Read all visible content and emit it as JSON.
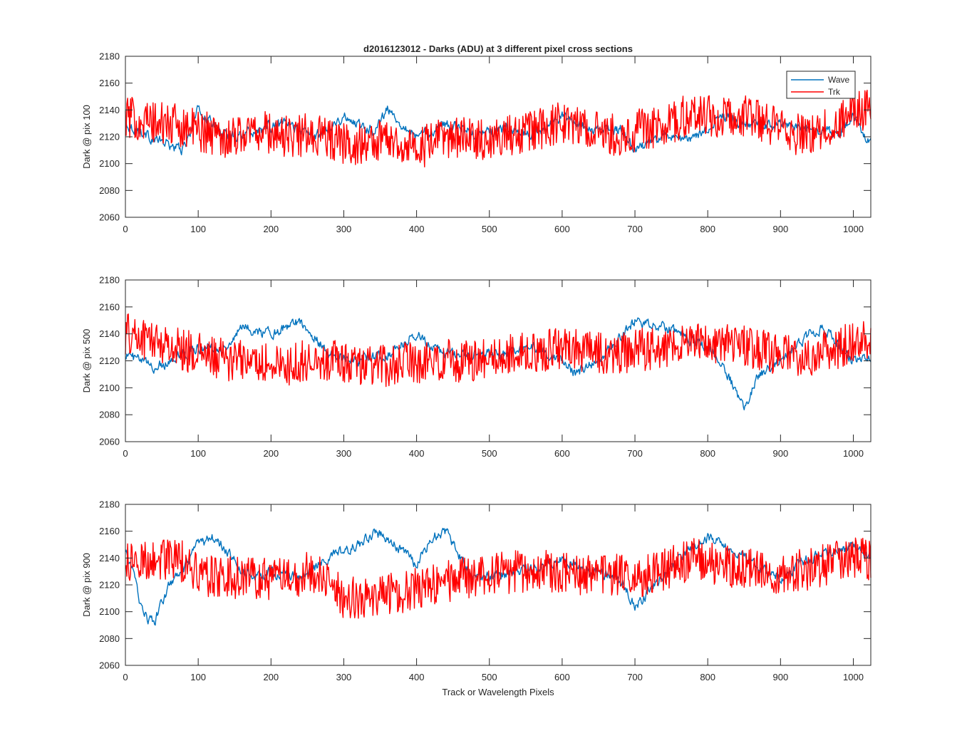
{
  "figure_title": "d2016123012 - Darks (ADU) at 3 different pixel cross sections",
  "legend": {
    "placement": "top-right of first panel",
    "entries": [
      {
        "label": "Wave",
        "color": "#0072bd"
      },
      {
        "label": "Trk",
        "color": "#ff0000"
      }
    ]
  },
  "chart_data": [
    {
      "type": "line",
      "title": "d2016123012 - Darks (ADU) at 3 different pixel cross sections",
      "ylabel": "Dark @ pix 100",
      "xlabel": "",
      "xlim": [
        0,
        1024
      ],
      "ylim": [
        2060,
        2180
      ],
      "xticks": [
        0,
        100,
        200,
        300,
        400,
        500,
        600,
        700,
        800,
        900,
        1000
      ],
      "yticks": [
        2060,
        2080,
        2100,
        2120,
        2140,
        2160,
        2180
      ],
      "grid": false,
      "series": [
        {
          "name": "Wave",
          "color": "#0072bd",
          "x": [
            0,
            40,
            80,
            100,
            140,
            180,
            220,
            260,
            300,
            340,
            360,
            400,
            440,
            480,
            520,
            560,
            600,
            640,
            680,
            700,
            740,
            780,
            820,
            860,
            900,
            940,
            980,
            1000,
            1024
          ],
          "y": [
            2130,
            2118,
            2110,
            2140,
            2120,
            2125,
            2130,
            2120,
            2135,
            2125,
            2140,
            2120,
            2130,
            2122,
            2125,
            2122,
            2135,
            2125,
            2125,
            2110,
            2120,
            2118,
            2135,
            2128,
            2130,
            2125,
            2122,
            2135,
            2115
          ]
        },
        {
          "name": "Trk",
          "color": "#ff0000",
          "x": [
            0,
            40,
            80,
            100,
            140,
            180,
            220,
            260,
            300,
            340,
            360,
            400,
            440,
            480,
            520,
            560,
            600,
            640,
            680,
            700,
            740,
            780,
            820,
            860,
            900,
            940,
            980,
            1000,
            1024
          ],
          "y": [
            2135,
            2130,
            2128,
            2125,
            2120,
            2125,
            2120,
            2122,
            2115,
            2115,
            2120,
            2110,
            2120,
            2118,
            2120,
            2125,
            2130,
            2125,
            2120,
            2125,
            2128,
            2138,
            2135,
            2135,
            2125,
            2120,
            2130,
            2140,
            2140
          ]
        }
      ]
    },
    {
      "type": "line",
      "ylabel": "Dark @ pix 500",
      "xlabel": "",
      "xlim": [
        0,
        1024
      ],
      "ylim": [
        2060,
        2180
      ],
      "xticks": [
        0,
        100,
        200,
        300,
        400,
        500,
        600,
        700,
        800,
        900,
        1000
      ],
      "yticks": [
        2060,
        2080,
        2100,
        2120,
        2140,
        2160,
        2180
      ],
      "grid": false,
      "series": [
        {
          "name": "Wave",
          "color": "#0072bd",
          "x": [
            0,
            40,
            80,
            100,
            140,
            160,
            200,
            240,
            280,
            320,
            360,
            400,
            440,
            480,
            520,
            560,
            600,
            620,
            660,
            700,
            740,
            780,
            800,
            820,
            840,
            850,
            870,
            900,
            940,
            960,
            1000,
            1024
          ],
          "y": [
            2125,
            2115,
            2125,
            2130,
            2130,
            2145,
            2140,
            2150,
            2125,
            2120,
            2125,
            2140,
            2125,
            2125,
            2125,
            2130,
            2120,
            2110,
            2125,
            2150,
            2145,
            2135,
            2130,
            2120,
            2095,
            2085,
            2110,
            2120,
            2140,
            2145,
            2120,
            2120
          ]
        },
        {
          "name": "Trk",
          "color": "#ff0000",
          "x": [
            0,
            40,
            80,
            100,
            140,
            180,
            220,
            260,
            300,
            340,
            380,
            420,
            460,
            500,
            540,
            580,
            620,
            660,
            700,
            740,
            780,
            820,
            860,
            900,
            940,
            980,
            1000,
            1024
          ],
          "y": [
            2140,
            2135,
            2128,
            2125,
            2120,
            2120,
            2115,
            2122,
            2120,
            2115,
            2118,
            2120,
            2120,
            2122,
            2125,
            2128,
            2128,
            2125,
            2128,
            2130,
            2132,
            2135,
            2130,
            2125,
            2125,
            2130,
            2135,
            2138
          ]
        }
      ]
    },
    {
      "type": "line",
      "ylabel": "Dark @ pix 900",
      "xlabel": "Track or Wavelength Pixels",
      "xlim": [
        0,
        1024
      ],
      "ylim": [
        2060,
        2180
      ],
      "xticks": [
        0,
        100,
        200,
        300,
        400,
        500,
        600,
        700,
        800,
        900,
        1000
      ],
      "yticks": [
        2060,
        2080,
        2100,
        2120,
        2140,
        2160,
        2180
      ],
      "grid": false,
      "series": [
        {
          "name": "Wave",
          "color": "#0072bd",
          "x": [
            0,
            10,
            20,
            30,
            40,
            60,
            80,
            100,
            120,
            140,
            160,
            180,
            200,
            240,
            280,
            320,
            340,
            360,
            400,
            420,
            440,
            460,
            480,
            520,
            560,
            600,
            640,
            680,
            700,
            720,
            760,
            800,
            840,
            880,
            900,
            940,
            980,
            1000,
            1024
          ],
          "y": [
            2145,
            2130,
            2108,
            2095,
            2092,
            2120,
            2130,
            2150,
            2155,
            2145,
            2130,
            2125,
            2130,
            2125,
            2140,
            2150,
            2158,
            2155,
            2135,
            2155,
            2160,
            2140,
            2125,
            2128,
            2132,
            2140,
            2130,
            2125,
            2105,
            2115,
            2140,
            2155,
            2145,
            2130,
            2125,
            2140,
            2145,
            2148,
            2140
          ]
        },
        {
          "name": "Trk",
          "color": "#ff0000",
          "x": [
            0,
            40,
            80,
            100,
            140,
            180,
            220,
            260,
            300,
            340,
            380,
            420,
            460,
            500,
            540,
            580,
            620,
            660,
            700,
            740,
            780,
            820,
            860,
            900,
            940,
            980,
            1000,
            1024
          ],
          "y": [
            2135,
            2140,
            2138,
            2128,
            2125,
            2125,
            2125,
            2130,
            2110,
            2110,
            2115,
            2120,
            2125,
            2128,
            2130,
            2130,
            2128,
            2128,
            2125,
            2132,
            2140,
            2135,
            2132,
            2128,
            2132,
            2138,
            2140,
            2138
          ]
        }
      ]
    }
  ]
}
